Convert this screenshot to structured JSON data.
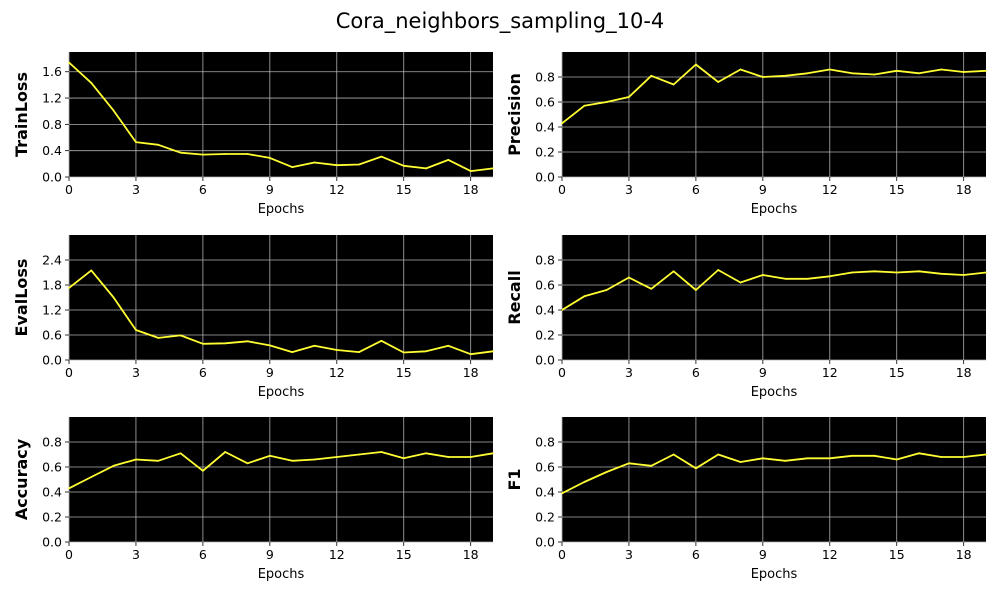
{
  "suptitle": "Cora_neighbors_sampling_10-4",
  "colors": {
    "plot_background": "#000000",
    "line": "#ffff33",
    "grid": "#b0b0b0"
  },
  "chart_data": [
    {
      "type": "line",
      "grid": true,
      "xlabel": "Epochs",
      "ylabel": "TrainLoss",
      "xlim": [
        0,
        19
      ],
      "ylim": [
        0,
        1.9
      ],
      "xticks": [
        0,
        3,
        6,
        9,
        12,
        15,
        18
      ],
      "yticks": [
        0.0,
        0.4,
        0.8,
        1.2,
        1.6
      ],
      "ytick_labels": [
        "0.0",
        "0.4",
        "0.8",
        "1.2",
        "1.6"
      ],
      "x": [
        0,
        1,
        2,
        3,
        4,
        5,
        6,
        7,
        8,
        9,
        10,
        11,
        12,
        13,
        14,
        15,
        16,
        17,
        18,
        19
      ],
      "y": [
        1.74,
        1.43,
        1.01,
        0.53,
        0.49,
        0.37,
        0.34,
        0.35,
        0.35,
        0.29,
        0.15,
        0.22,
        0.18,
        0.19,
        0.31,
        0.17,
        0.13,
        0.26,
        0.09,
        0.13
      ]
    },
    {
      "type": "line",
      "grid": true,
      "xlabel": "Epochs",
      "ylabel": "Precision",
      "xlim": [
        0,
        19
      ],
      "ylim": [
        0,
        1.0
      ],
      "xticks": [
        0,
        3,
        6,
        9,
        12,
        15,
        18
      ],
      "yticks": [
        0.0,
        0.2,
        0.4,
        0.6,
        0.8
      ],
      "ytick_labels": [
        "0.0",
        "0.2",
        "0.4",
        "0.6",
        "0.8"
      ],
      "x": [
        0,
        1,
        2,
        3,
        4,
        5,
        6,
        7,
        8,
        9,
        10,
        11,
        12,
        13,
        14,
        15,
        16,
        17,
        18,
        19
      ],
      "y": [
        0.43,
        0.57,
        0.6,
        0.64,
        0.81,
        0.74,
        0.9,
        0.76,
        0.86,
        0.8,
        0.81,
        0.83,
        0.86,
        0.83,
        0.82,
        0.85,
        0.83,
        0.86,
        0.84,
        0.85
      ]
    },
    {
      "type": "line",
      "grid": true,
      "xlabel": "Epochs",
      "ylabel": "EvalLoss",
      "xlim": [
        0,
        19
      ],
      "ylim": [
        0,
        3.0
      ],
      "xticks": [
        0,
        3,
        6,
        9,
        12,
        15,
        18
      ],
      "yticks": [
        0.0,
        0.6,
        1.2,
        1.8,
        2.4
      ],
      "ytick_labels": [
        "0.0",
        "0.6",
        "1.2",
        "1.8",
        "2.4"
      ],
      "x": [
        0,
        1,
        2,
        3,
        4,
        5,
        6,
        7,
        8,
        9,
        10,
        11,
        12,
        13,
        14,
        15,
        16,
        17,
        18,
        19
      ],
      "y": [
        1.73,
        2.15,
        1.5,
        0.72,
        0.53,
        0.59,
        0.39,
        0.4,
        0.45,
        0.35,
        0.19,
        0.34,
        0.24,
        0.19,
        0.46,
        0.18,
        0.21,
        0.34,
        0.14,
        0.21
      ]
    },
    {
      "type": "line",
      "grid": true,
      "xlabel": "Epochs",
      "ylabel": "Recall",
      "xlim": [
        0,
        19
      ],
      "ylim": [
        0,
        1.0
      ],
      "xticks": [
        0,
        3,
        6,
        9,
        12,
        15,
        18
      ],
      "yticks": [
        0.0,
        0.2,
        0.4,
        0.6,
        0.8
      ],
      "ytick_labels": [
        "0.0",
        "0.2",
        "0.4",
        "0.6",
        "0.8"
      ],
      "x": [
        0,
        1,
        2,
        3,
        4,
        5,
        6,
        7,
        8,
        9,
        10,
        11,
        12,
        13,
        14,
        15,
        16,
        17,
        18,
        19
      ],
      "y": [
        0.4,
        0.51,
        0.56,
        0.66,
        0.57,
        0.71,
        0.56,
        0.72,
        0.62,
        0.68,
        0.65,
        0.65,
        0.67,
        0.7,
        0.71,
        0.7,
        0.71,
        0.69,
        0.68,
        0.7
      ]
    },
    {
      "type": "line",
      "grid": true,
      "xlabel": "Epochs",
      "ylabel": "Accuracy",
      "xlim": [
        0,
        19
      ],
      "ylim": [
        0,
        1.0
      ],
      "xticks": [
        0,
        3,
        6,
        9,
        12,
        15,
        18
      ],
      "yticks": [
        0.0,
        0.2,
        0.4,
        0.6,
        0.8
      ],
      "ytick_labels": [
        "0.0",
        "0.2",
        "0.4",
        "0.6",
        "0.8"
      ],
      "x": [
        0,
        1,
        2,
        3,
        4,
        5,
        6,
        7,
        8,
        9,
        10,
        11,
        12,
        13,
        14,
        15,
        16,
        17,
        18,
        19
      ],
      "y": [
        0.43,
        0.52,
        0.61,
        0.66,
        0.65,
        0.71,
        0.57,
        0.72,
        0.63,
        0.69,
        0.65,
        0.66,
        0.68,
        0.7,
        0.72,
        0.67,
        0.71,
        0.68,
        0.68,
        0.71
      ]
    },
    {
      "type": "line",
      "grid": true,
      "xlabel": "Epochs",
      "ylabel": "F1",
      "xlim": [
        0,
        19
      ],
      "ylim": [
        0,
        1.0
      ],
      "xticks": [
        0,
        3,
        6,
        9,
        12,
        15,
        18
      ],
      "yticks": [
        0.0,
        0.2,
        0.4,
        0.6,
        0.8
      ],
      "ytick_labels": [
        "0.0",
        "0.2",
        "0.4",
        "0.6",
        "0.8"
      ],
      "x": [
        0,
        1,
        2,
        3,
        4,
        5,
        6,
        7,
        8,
        9,
        10,
        11,
        12,
        13,
        14,
        15,
        16,
        17,
        18,
        19
      ],
      "y": [
        0.39,
        0.48,
        0.56,
        0.63,
        0.61,
        0.7,
        0.59,
        0.7,
        0.64,
        0.67,
        0.65,
        0.67,
        0.67,
        0.69,
        0.69,
        0.66,
        0.71,
        0.68,
        0.68,
        0.7
      ]
    }
  ]
}
